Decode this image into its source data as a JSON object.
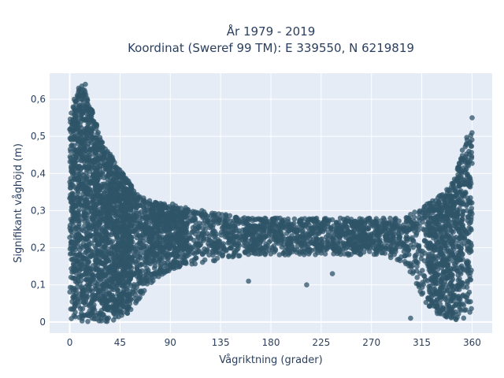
{
  "chart_data": {
    "type": "scatter",
    "title_line1": "År 1979 - 2019",
    "title_line2": "Koordinat (Sweref 99 TM): E 339550, N 6219819",
    "xlabel": "Vågriktning (grader)",
    "ylabel": "Signifikant våghöjd (m)",
    "xlim": [
      -18,
      378
    ],
    "ylim": [
      -0.03,
      0.67
    ],
    "x_ticks": [
      0,
      45,
      90,
      135,
      180,
      225,
      270,
      315,
      360
    ],
    "x_tick_labels": [
      "0",
      "45",
      "90",
      "135",
      "180",
      "225",
      "270",
      "315",
      "360"
    ],
    "y_ticks": [
      0,
      0.1,
      0.2,
      0.3,
      0.4,
      0.5,
      0.6
    ],
    "y_tick_labels": [
      "0",
      "0,1",
      "0,2",
      "0,3",
      "0,4",
      "0,5",
      "0,6"
    ],
    "grid": true,
    "marker_color": "#2f5468",
    "plot_background": "#e5ecf6",
    "envelope": {
      "x": [
        0,
        5,
        10,
        15,
        20,
        25,
        30,
        35,
        40,
        45,
        50,
        55,
        60,
        65,
        70,
        80,
        90,
        100,
        120,
        140,
        160,
        180,
        200,
        220,
        240,
        260,
        280,
        300,
        320,
        330,
        340,
        345,
        350,
        355,
        360
      ],
      "upper": [
        0.55,
        0.6,
        0.64,
        0.62,
        0.58,
        0.52,
        0.48,
        0.46,
        0.44,
        0.41,
        0.39,
        0.37,
        0.35,
        0.34,
        0.33,
        0.32,
        0.32,
        0.31,
        0.3,
        0.29,
        0.28,
        0.28,
        0.28,
        0.28,
        0.28,
        0.28,
        0.28,
        0.28,
        0.32,
        0.34,
        0.37,
        0.4,
        0.45,
        0.5,
        0.52
      ],
      "lower": [
        0.0,
        0.0,
        0.0,
        0.0,
        0.0,
        0.0,
        0.0,
        0.0,
        0.0,
        0.01,
        0.02,
        0.03,
        0.05,
        0.07,
        0.1,
        0.12,
        0.14,
        0.15,
        0.16,
        0.17,
        0.18,
        0.18,
        0.18,
        0.18,
        0.18,
        0.18,
        0.18,
        0.16,
        0.04,
        0.02,
        0.01,
        0.0,
        0.0,
        0.0,
        0.0
      ]
    },
    "outliers": [
      {
        "x": 4,
        "y": 0.6
      },
      {
        "x": 8,
        "y": 0.63
      },
      {
        "x": 14,
        "y": 0.64
      },
      {
        "x": 160,
        "y": 0.11
      },
      {
        "x": 212,
        "y": 0.1
      },
      {
        "x": 235,
        "y": 0.13
      },
      {
        "x": 305,
        "y": 0.01
      },
      {
        "x": 360,
        "y": 0.55
      },
      {
        "x": 355,
        "y": 0.48
      },
      {
        "x": 350,
        "y": 0.44
      }
    ]
  }
}
